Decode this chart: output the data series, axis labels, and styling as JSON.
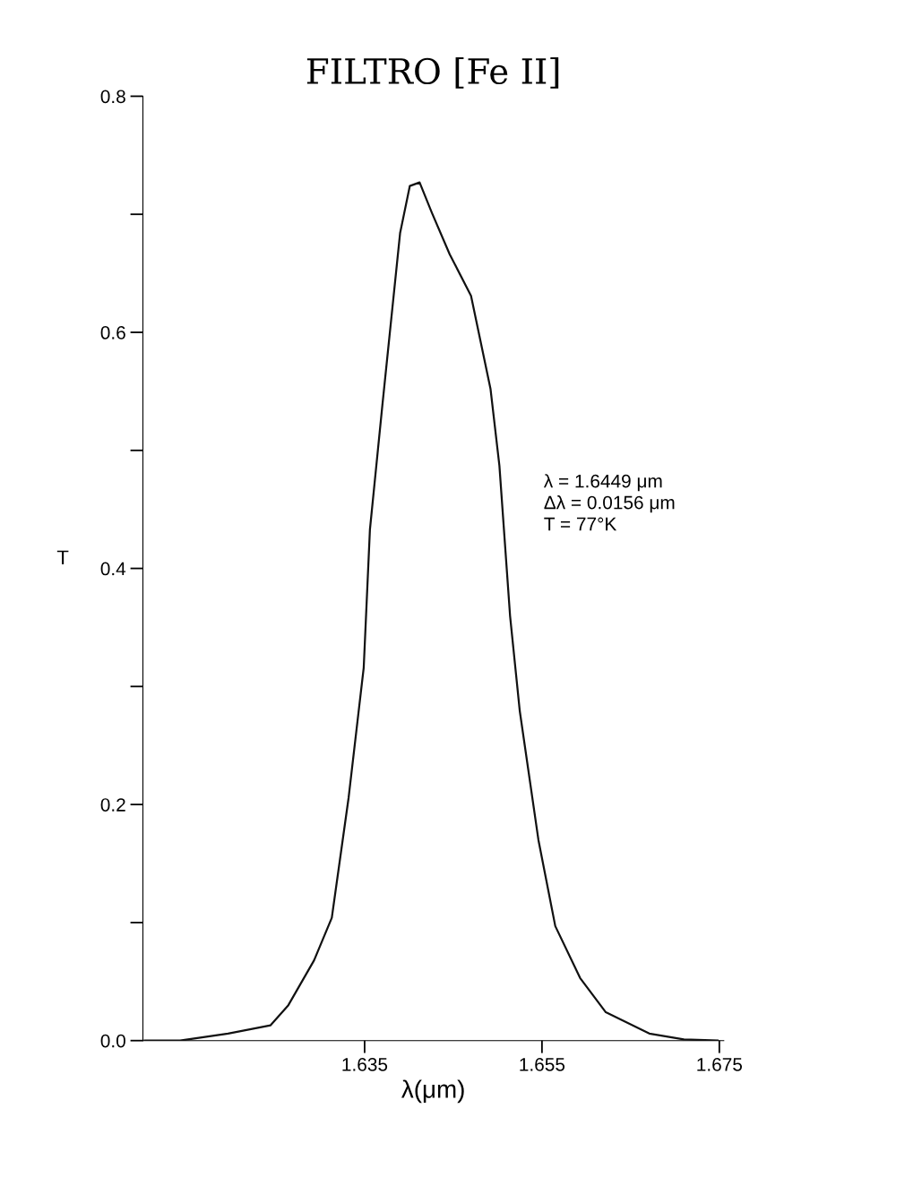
{
  "chart_data": {
    "type": "line",
    "title": "FILTRO [Fe II]",
    "xlabel": "λ(μm)",
    "ylabel": "T",
    "x": [
      1.6102,
      1.6142,
      1.6196,
      1.6244,
      1.6264,
      1.6293,
      1.6313,
      1.6332,
      1.6349,
      1.6356,
      1.637,
      1.639,
      1.6401,
      1.6412,
      1.6426,
      1.6446,
      1.647,
      1.6492,
      1.6502,
      1.6514,
      1.6525,
      1.6546,
      1.6565,
      1.6593,
      1.6622,
      1.6671,
      1.671,
      1.6748
    ],
    "series": [
      {
        "color": "#111111",
        "values": [
          0,
          0,
          0.006,
          0.013,
          0.03,
          0.068,
          0.104,
          0.206,
          0.316,
          0.433,
          0.538,
          0.684,
          0.724,
          0.727,
          0.701,
          0.666,
          0.631,
          0.552,
          0.487,
          0.36,
          0.279,
          0.17,
          0.097,
          0.053,
          0.024,
          0.006,
          0.001,
          0
        ]
      }
    ],
    "xlim": [
      1.61,
      1.6755
    ],
    "xticks": [
      1.635,
      1.655,
      1.675
    ],
    "ylim": [
      0,
      0.8
    ],
    "yticks": [
      {
        "value": 0,
        "label": "0.0"
      },
      {
        "value": 0.1,
        "label": null
      },
      0.2,
      {
        "value": 0.3,
        "label": null
      },
      0.4,
      {
        "value": 0.5,
        "label": null
      },
      0.6,
      {
        "value": 0.7,
        "label": null
      },
      0.8
    ],
    "annotations": [
      "λ = 1.6449 μm\nΔλ = 0.0156 μm\nT = 77°K"
    ],
    "grid": false,
    "legend": false,
    "marker": "none",
    "line_style": "solid"
  }
}
